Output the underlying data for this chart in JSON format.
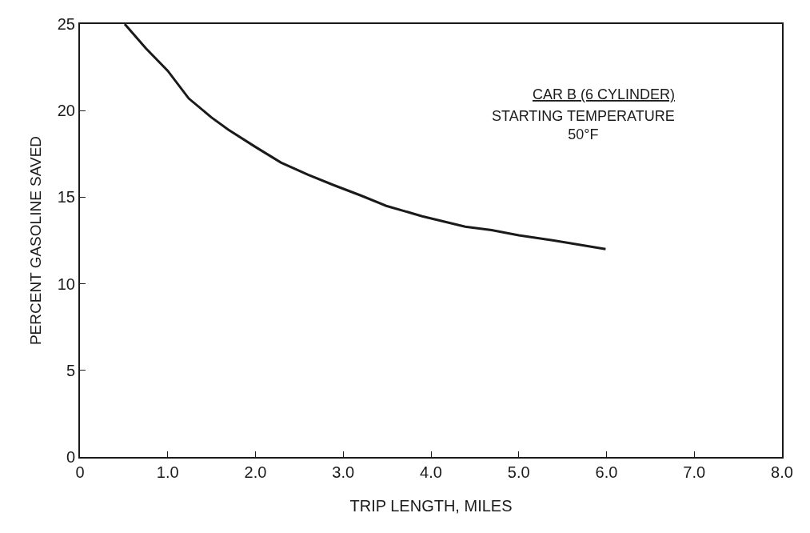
{
  "chart_data": {
    "type": "line",
    "xlabel": "TRIP LENGTH, MILES",
    "ylabel": "PERCENT GASOLINE SAVED",
    "annotations": [
      "CAR B (6 CYLINDER)",
      "STARTING TEMPERATURE\n50°F"
    ],
    "series": [
      {
        "color": "#1a1a1a",
        "x": [
          0.51,
          0.75,
          1.0,
          1.24,
          1.5,
          1.69,
          2.0,
          2.29,
          2.6,
          2.89,
          3.2,
          3.49,
          3.9,
          4.39,
          4.69,
          5.0,
          5.4,
          5.99
        ],
        "values": [
          25,
          23.6,
          22.3,
          20.7,
          19.6,
          18.9,
          17.9,
          17.0,
          16.3,
          15.7,
          15.1,
          14.5,
          13.9,
          13.3,
          13.1,
          12.8,
          12.5,
          12.0
        ]
      }
    ],
    "xlim": [
      0,
      8
    ],
    "ylim": [
      0,
      25
    ],
    "xticks": [
      0,
      {
        "value": 1,
        "label": "1.0"
      },
      {
        "value": 2,
        "label": "2.0"
      },
      {
        "value": 3,
        "label": "3.0"
      },
      {
        "value": 4,
        "label": "4.0"
      },
      {
        "value": 5,
        "label": "5.0"
      },
      {
        "value": 6,
        "label": "6.0"
      },
      {
        "value": 7,
        "label": "7.0"
      },
      {
        "value": 8,
        "label": "8.0"
      }
    ],
    "yticks": [
      0,
      5,
      10,
      15,
      20,
      25
    ],
    "marker": "none",
    "line_style": "solid"
  }
}
